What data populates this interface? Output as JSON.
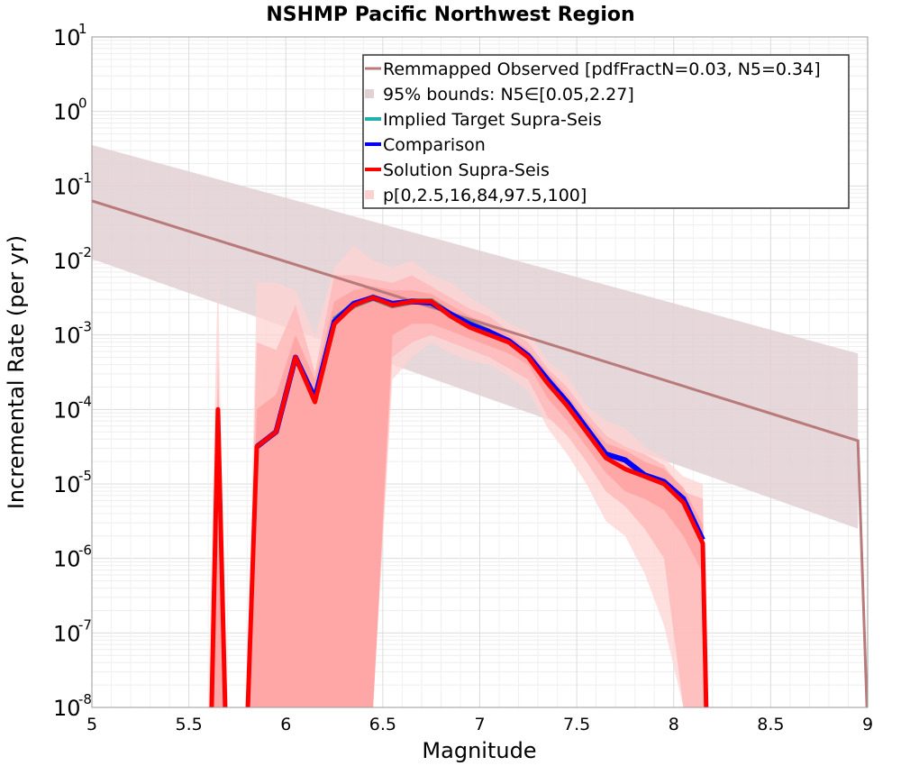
{
  "chart_data": {
    "type": "line",
    "title": "NSHMP Pacific Northwest Region",
    "xlabel": "Magnitude",
    "ylabel": "Incremental Rate (per yr)",
    "xlim": [
      5,
      9
    ],
    "ylim_log10": [
      -8,
      1
    ],
    "x_ticks": [
      "5",
      "5.5",
      "6",
      "6.5",
      "7",
      "7.5",
      "8",
      "8.5",
      "9"
    ],
    "y_ticks": [
      {
        "base": "10",
        "exp": "1"
      },
      {
        "base": "10",
        "exp": "0"
      },
      {
        "base": "10",
        "exp": "-1"
      },
      {
        "base": "10",
        "exp": "-2"
      },
      {
        "base": "10",
        "exp": "-3"
      },
      {
        "base": "10",
        "exp": "-4"
      },
      {
        "base": "10",
        "exp": "-5"
      },
      {
        "base": "10",
        "exp": "-6"
      },
      {
        "base": "10",
        "exp": "-7"
      },
      {
        "base": "10",
        "exp": "-8"
      }
    ],
    "grid": true,
    "legend_position": "top-right",
    "legend": [
      {
        "label": "Remmapped Observed [pdfFractN=0.03, N5=0.34]",
        "style": "line",
        "color": "#b87a7a"
      },
      {
        "label": "95% bounds: N5∈[0.05,2.27]",
        "style": "band",
        "color": "#e2d0d3"
      },
      {
        "label": "Implied Target Supra-Seis",
        "style": "line",
        "color": "#20b2aa"
      },
      {
        "label": "Comparison",
        "style": "line",
        "color": "#0000ff"
      },
      {
        "label": "Solution Supra-Seis",
        "style": "line",
        "color": "#ff0000"
      },
      {
        "label": "p[0,2.5,16,84,97.5,100]",
        "style": "band",
        "color": "#ffd0d0"
      }
    ],
    "series": {
      "observed": {
        "name": "Remmapped Observed",
        "color": "#b87a7a",
        "x": [
          5.0,
          8.95,
          9.0
        ],
        "y_log10": [
          -1.2,
          -4.42,
          -8.3
        ]
      },
      "observed_bounds": {
        "name": "95% bounds",
        "color": "#e2d0d3",
        "x": [
          5.0,
          8.95
        ],
        "upper_log10": [
          -0.45,
          -3.25
        ],
        "lower_log10": [
          -1.98,
          -5.6
        ]
      },
      "solution": {
        "name": "Solution Supra-Seis",
        "color": "#ff0000",
        "x": [
          5.615,
          5.65,
          5.69,
          5.8,
          5.85,
          5.95,
          6.05,
          6.15,
          6.25,
          6.35,
          6.45,
          6.55,
          6.65,
          6.75,
          6.85,
          6.95,
          7.05,
          7.15,
          7.25,
          7.35,
          7.45,
          7.55,
          7.65,
          7.75,
          7.85,
          7.95,
          8.05,
          8.15,
          8.17
        ],
        "y_log10": [
          -8.3,
          -4.0,
          -8.3,
          -8.3,
          -4.5,
          -4.3,
          -3.3,
          -3.9,
          -2.85,
          -2.6,
          -2.5,
          -2.6,
          -2.55,
          -2.55,
          -2.75,
          -2.9,
          -3.0,
          -3.1,
          -3.3,
          -3.65,
          -3.95,
          -4.3,
          -4.65,
          -4.8,
          -4.9,
          -5.0,
          -5.25,
          -5.8,
          -8.3
        ]
      },
      "comparison": {
        "name": "Comparison",
        "color": "#0000ff",
        "x": [
          5.85,
          5.95,
          6.05,
          6.15,
          6.25,
          6.35,
          6.45,
          6.55,
          6.65,
          6.75,
          6.85,
          6.95,
          7.05,
          7.15,
          7.25,
          7.35,
          7.45,
          7.55,
          7.65,
          7.75,
          7.85,
          7.95,
          8.05,
          8.15
        ],
        "y_log10": [
          -4.5,
          -4.3,
          -3.3,
          -3.85,
          -2.82,
          -2.58,
          -2.5,
          -2.58,
          -2.55,
          -2.57,
          -2.72,
          -2.86,
          -2.96,
          -3.08,
          -3.28,
          -3.6,
          -3.9,
          -4.25,
          -4.6,
          -4.68,
          -4.88,
          -4.97,
          -5.2,
          -5.75
        ]
      },
      "target": {
        "name": "Implied Target Supra-Seis",
        "color": "#20b2aa",
        "x": [
          6.25,
          6.35,
          6.45,
          6.55,
          6.65,
          6.75,
          6.85,
          6.95,
          7.05
        ],
        "y_log10": [
          -2.8,
          -2.6,
          -2.5,
          -2.6,
          -2.55,
          -2.55,
          -2.73,
          -2.85,
          -2.96
        ]
      },
      "percentile_bands": [
        {
          "name": "p0-p100",
          "color": "#ffd3d3",
          "x": [
            5.6,
            5.65,
            5.69,
            5.8,
            5.85,
            5.95,
            6.05,
            6.15,
            6.25,
            6.35,
            6.45,
            6.55,
            6.65,
            6.75,
            6.85,
            6.95,
            7.05,
            7.15,
            7.25,
            7.35,
            7.45,
            7.55,
            7.65,
            7.75,
            7.85,
            7.95,
            8.05,
            8.15,
            8.17
          ],
          "upper_log10": [
            -8.0,
            -2.1,
            -8.0,
            -8.0,
            -2.3,
            -2.3,
            -2.4,
            -3.0,
            -2.1,
            -1.8,
            -2.0,
            -2.1,
            -2.0,
            -2.2,
            -2.3,
            -2.5,
            -2.65,
            -2.85,
            -2.95,
            -3.35,
            -3.55,
            -3.95,
            -4.15,
            -4.25,
            -4.5,
            -4.65,
            -4.9,
            -5.0,
            -8.0
          ],
          "lower_log10": [
            -8.0,
            -8.0,
            -8.0,
            -8.0,
            -8.0,
            -8.0,
            -8.0,
            -8.0,
            -8.0,
            -8.0,
            -8.0,
            -3.6,
            -3.3,
            -3.1,
            -3.25,
            -3.35,
            -3.4,
            -3.55,
            -3.75,
            -4.25,
            -4.6,
            -5.0,
            -5.5,
            -5.7,
            -6.2,
            -6.9,
            -8.0,
            -8.0,
            -8.0
          ]
        },
        {
          "name": "p2.5-p97.5",
          "color": "#ffb5b5",
          "x": [
            5.62,
            5.65,
            5.69,
            5.8,
            5.85,
            5.95,
            6.05,
            6.15,
            6.25,
            6.35,
            6.45,
            6.55,
            6.65,
            6.75,
            6.85,
            6.95,
            7.05,
            7.15,
            7.25,
            7.35,
            7.45,
            7.55,
            7.65,
            7.75,
            7.85,
            7.95,
            8.05,
            8.15,
            8.17
          ],
          "upper_log10": [
            -8.0,
            -3.2,
            -8.0,
            -8.0,
            -3.1,
            -3.2,
            -2.6,
            -3.5,
            -2.2,
            -2.2,
            -2.25,
            -2.3,
            -2.2,
            -2.35,
            -2.5,
            -2.65,
            -2.75,
            -2.95,
            -3.1,
            -3.45,
            -3.7,
            -4.05,
            -4.35,
            -4.5,
            -4.6,
            -4.75,
            -5.1,
            -5.2,
            -8.0
          ],
          "lower_log10": [
            -8.0,
            -8.0,
            -8.0,
            -8.0,
            -8.0,
            -8.0,
            -8.0,
            -8.0,
            -8.0,
            -8.0,
            -8.0,
            -3.3,
            -3.1,
            -3.0,
            -3.1,
            -3.2,
            -3.3,
            -3.45,
            -3.6,
            -4.1,
            -4.35,
            -4.7,
            -5.1,
            -5.3,
            -5.6,
            -6.0,
            -8.0,
            -8.0,
            -8.0
          ]
        },
        {
          "name": "p16-p84",
          "color": "#ff9f9f",
          "x": [
            5.63,
            5.65,
            5.68,
            5.8,
            5.85,
            5.95,
            6.05,
            6.15,
            6.25,
            6.35,
            6.45,
            6.55,
            6.65,
            6.75,
            6.85,
            6.95,
            7.05,
            7.15,
            7.25,
            7.35,
            7.45,
            7.55,
            7.65,
            7.75,
            7.85,
            7.95,
            8.05,
            8.15,
            8.17
          ],
          "upper_log10": [
            -8.0,
            -3.7,
            -8.0,
            -8.0,
            -4.0,
            -3.8,
            -3.0,
            -3.6,
            -2.55,
            -2.4,
            -2.35,
            -2.4,
            -2.4,
            -2.45,
            -2.6,
            -2.75,
            -2.85,
            -3.0,
            -3.2,
            -3.5,
            -3.8,
            -4.15,
            -4.45,
            -4.55,
            -4.7,
            -4.8,
            -5.05,
            -5.55,
            -8.0
          ],
          "lower_log10": [
            -8.0,
            -8.0,
            -8.0,
            -8.0,
            -8.0,
            -8.0,
            -8.0,
            -8.0,
            -8.0,
            -8.0,
            -8.0,
            -3.0,
            -2.85,
            -2.85,
            -2.95,
            -3.05,
            -3.15,
            -3.25,
            -3.4,
            -3.85,
            -4.15,
            -4.5,
            -4.85,
            -5.1,
            -5.2,
            -5.35,
            -5.7,
            -6.2,
            -8.0
          ]
        }
      ]
    }
  }
}
